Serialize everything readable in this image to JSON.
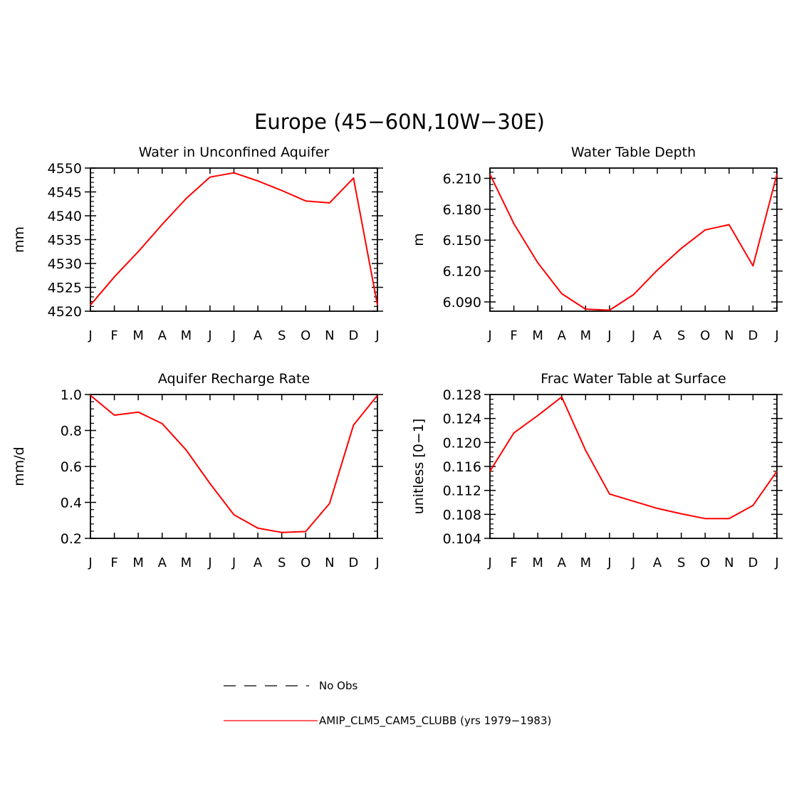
{
  "main_title": "Europe (45−60N,10W−30E)",
  "month_ticks": [
    "J",
    "F",
    "M",
    "A",
    "M",
    "J",
    "J",
    "A",
    "S",
    "O",
    "N",
    "D",
    "J"
  ],
  "colors": {
    "model": "#ff0000",
    "obs": "#000000"
  },
  "legend": {
    "obs_label": "No Obs",
    "model_label": "AMIP_CLM5_CAM5_CLUBB (yrs 1979−1983)"
  },
  "chart_data": [
    {
      "type": "line",
      "title": "Water in Unconfined Aquifer",
      "ylabel": "mm",
      "xlabel": "",
      "x": [
        "J",
        "F",
        "M",
        "A",
        "M",
        "J",
        "J",
        "A",
        "S",
        "O",
        "N",
        "D",
        "J"
      ],
      "ylim": [
        4520,
        4550
      ],
      "yticks": [
        "4520",
        "4525",
        "4530",
        "4535",
        "4540",
        "4545",
        "4550"
      ],
      "series": [
        {
          "values": [
            4521.3,
            4527.2,
            4532.5,
            4538.2,
            4543.6,
            4548.1,
            4549.0,
            4547.3,
            4545.3,
            4543.1,
            4542.7,
            4547.9,
            4521.3
          ]
        }
      ]
    },
    {
      "type": "line",
      "title": "Water Table Depth",
      "ylabel": "m",
      "xlabel": "",
      "x": [
        "J",
        "F",
        "M",
        "A",
        "M",
        "J",
        "J",
        "A",
        "S",
        "O",
        "N",
        "D",
        "J"
      ],
      "ylim": [
        6.081,
        6.22
      ],
      "yticks": [
        "6.090",
        "6.120",
        "6.150",
        "6.180",
        "6.210"
      ],
      "series": [
        {
          "values": [
            6.214,
            6.166,
            6.128,
            6.098,
            6.083,
            6.082,
            6.097,
            6.121,
            6.142,
            6.16,
            6.165,
            6.125,
            6.214
          ]
        }
      ]
    },
    {
      "type": "line",
      "title": "Aquifer Recharge Rate",
      "ylabel": "mm/d",
      "xlabel": "",
      "x": [
        "J",
        "F",
        "M",
        "A",
        "M",
        "J",
        "J",
        "A",
        "S",
        "O",
        "N",
        "D",
        "J"
      ],
      "ylim": [
        0.2,
        1.0
      ],
      "yticks": [
        "0.2",
        "0.4",
        "0.6",
        "0.8",
        "1.0"
      ],
      "series": [
        {
          "values": [
            0.995,
            0.885,
            0.902,
            0.838,
            0.692,
            0.505,
            0.331,
            0.257,
            0.233,
            0.238,
            0.394,
            0.83,
            0.995
          ]
        }
      ]
    },
    {
      "type": "line",
      "title": "Frac Water Table at Surface",
      "ylabel": "unitless [0−1]",
      "xlabel": "",
      "x": [
        "J",
        "F",
        "M",
        "A",
        "M",
        "J",
        "J",
        "A",
        "S",
        "O",
        "N",
        "D",
        "J"
      ],
      "ylim": [
        0.104,
        0.128
      ],
      "yticks": [
        "0.104",
        "0.108",
        "0.112",
        "0.116",
        "0.120",
        "0.124",
        "0.128"
      ],
      "series": [
        {
          "values": [
            0.1152,
            0.1216,
            0.1245,
            0.1276,
            0.1187,
            0.1114,
            0.1102,
            0.109,
            0.1081,
            0.1073,
            0.1073,
            0.1095,
            0.1152
          ]
        }
      ]
    }
  ]
}
